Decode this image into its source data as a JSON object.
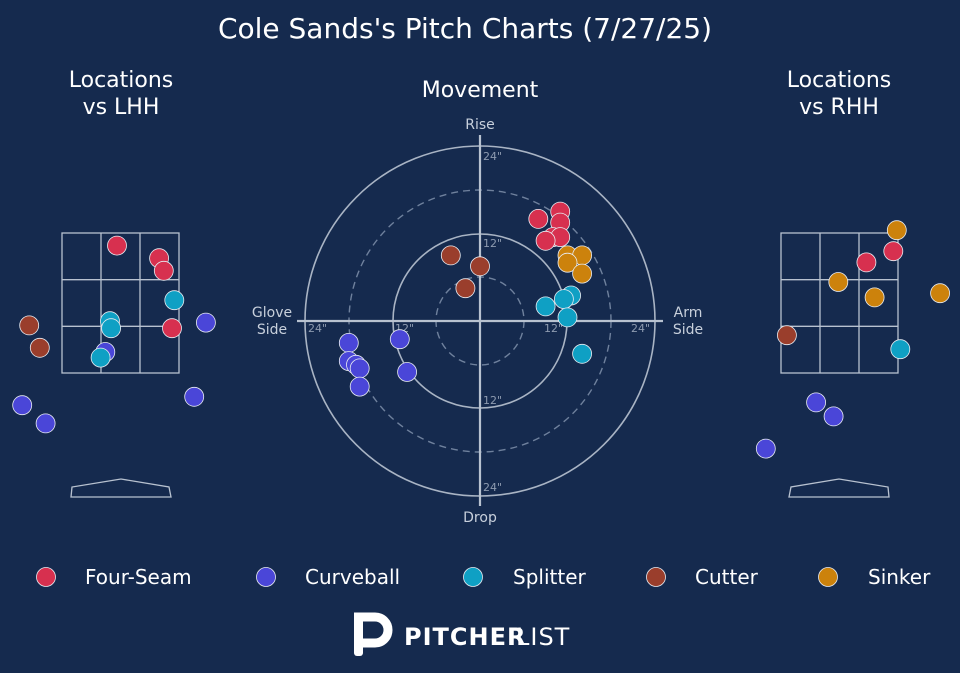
{
  "title": "Cole Sands's Pitch Charts (7/27/25)",
  "panels": {
    "lhh_title": [
      "Locations",
      "vs LHH"
    ],
    "movement_title": "Movement",
    "rhh_title": [
      "Locations",
      "vs RHH"
    ]
  },
  "movement_labels": {
    "top": "Rise",
    "bottom": "Drop",
    "left": [
      "Glove",
      "Side"
    ],
    "right": [
      "Arm",
      "Side"
    ],
    "ring_labels": [
      "24\"",
      "12\"",
      "12\"",
      "24\"",
      "12\"",
      "24\"",
      "12\"",
      "24\""
    ]
  },
  "colors": {
    "Four-Seam": "#d7304f",
    "Curveball": "#4a46d8",
    "Splitter": "#0fa0c4",
    "Cutter": "#9a3e2c",
    "Sinker": "#cc820c"
  },
  "legend": [
    {
      "label": "Four-Seam",
      "key": "Four-Seam"
    },
    {
      "label": "Curveball",
      "key": "Curveball"
    },
    {
      "label": "Splitter",
      "key": "Splitter"
    },
    {
      "label": "Cutter",
      "key": "Cutter"
    },
    {
      "label": "Sinker",
      "key": "Sinker"
    }
  ],
  "logo": {
    "word1": "PITCHER",
    "word2": "LIST"
  },
  "chart_data": [
    {
      "type": "scatter",
      "title": "Locations vs LHH",
      "units": "zone fractions: x from left edge of strike-zone box (0-1), y from bottom of box (0-1)",
      "series": [
        {
          "name": "Four-Seam",
          "points": [
            [
              0.47,
              0.91
            ],
            [
              0.83,
              0.82
            ],
            [
              0.87,
              0.73
            ],
            [
              0.94,
              0.32
            ]
          ]
        },
        {
          "name": "Curveball",
          "points": [
            [
              1.23,
              0.36
            ],
            [
              0.37,
              0.15
            ],
            [
              -0.34,
              -0.23
            ],
            [
              -0.14,
              -0.36
            ],
            [
              1.13,
              -0.17
            ]
          ]
        },
        {
          "name": "Splitter",
          "points": [
            [
              0.96,
              0.52
            ],
            [
              0.41,
              0.37
            ],
            [
              0.42,
              0.32
            ],
            [
              0.33,
              0.11
            ]
          ]
        },
        {
          "name": "Cutter",
          "points": [
            [
              -0.28,
              0.34
            ],
            [
              -0.19,
              0.18
            ]
          ]
        }
      ]
    },
    {
      "type": "scatter",
      "title": "Movement",
      "units": "inches (x: negative = glove side, positive = arm side; y: positive = rise)",
      "xlim": [
        -24,
        24
      ],
      "ylim": [
        -24,
        24
      ],
      "rings": [
        6,
        12,
        18,
        24
      ],
      "series": [
        {
          "name": "Four-Seam",
          "points": [
            [
              11,
              15
            ],
            [
              11,
              13.5
            ],
            [
              8,
              14
            ],
            [
              10,
              11.5
            ],
            [
              11,
              11.5
            ],
            [
              9,
              11
            ]
          ]
        },
        {
          "name": "Curveball",
          "points": [
            [
              -18,
              -3
            ],
            [
              -18,
              -5.5
            ],
            [
              -17,
              -6
            ],
            [
              -16.5,
              -6.5
            ],
            [
              -16.5,
              -9
            ],
            [
              -11,
              -2.5
            ],
            [
              -10,
              -7
            ]
          ]
        },
        {
          "name": "Splitter",
          "points": [
            [
              12.5,
              3.5
            ],
            [
              11.5,
              3
            ],
            [
              9,
              2
            ],
            [
              12,
              0.5
            ],
            [
              14,
              -4.5
            ]
          ]
        },
        {
          "name": "Cutter",
          "points": [
            [
              -4,
              9
            ],
            [
              0,
              7.5
            ],
            [
              -2,
              4.5
            ]
          ]
        },
        {
          "name": "Sinker",
          "points": [
            [
              12,
              9
            ],
            [
              14,
              9
            ],
            [
              12,
              8
            ],
            [
              14,
              6.5
            ]
          ]
        }
      ]
    },
    {
      "type": "scatter",
      "title": "Locations vs RHH",
      "units": "zone fractions: x from left edge of strike-zone box (0-1), y from bottom of box (0-1)",
      "series": [
        {
          "name": "Four-Seam",
          "points": [
            [
              0.73,
              0.79
            ],
            [
              0.96,
              0.87
            ]
          ]
        },
        {
          "name": "Curveball",
          "points": [
            [
              0.3,
              -0.21
            ],
            [
              0.45,
              -0.31
            ],
            [
              -0.13,
              -0.54
            ]
          ]
        },
        {
          "name": "Splitter",
          "points": [
            [
              1.02,
              0.17
            ]
          ]
        },
        {
          "name": "Cutter",
          "points": [
            [
              0.05,
              0.27
            ]
          ]
        },
        {
          "name": "Sinker",
          "points": [
            [
              0.99,
              1.02
            ],
            [
              0.49,
              0.65
            ],
            [
              0.8,
              0.54
            ],
            [
              1.36,
              0.57
            ]
          ]
        }
      ]
    }
  ]
}
